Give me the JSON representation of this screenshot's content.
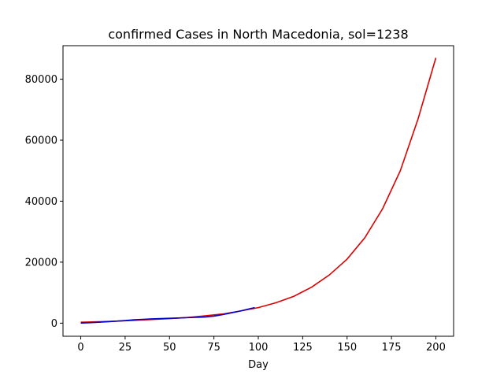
{
  "chart_data": {
    "type": "line",
    "title": "confirmed Cases in North Macedonia, sol=1238",
    "xlabel": "Day",
    "ylabel": "",
    "xlim": [
      -10,
      210
    ],
    "ylim": [
      -4300,
      91000
    ],
    "xticks": [
      0,
      25,
      50,
      75,
      100,
      125,
      150,
      175,
      200
    ],
    "yticks": [
      0,
      20000,
      40000,
      60000,
      80000
    ],
    "grid": false,
    "series": [
      {
        "color": "#dd0000",
        "x": [
          0,
          10,
          20,
          30,
          40,
          50,
          60,
          70,
          80,
          90,
          100,
          110,
          120,
          130,
          140,
          150,
          160,
          170,
          180,
          190,
          200
        ],
        "y": [
          300,
          450,
          650,
          900,
          1200,
          1500,
          1850,
          2400,
          3000,
          4000,
          5100,
          6700,
          8800,
          11800,
          15800,
          21000,
          28000,
          37500,
          50000,
          67000,
          87000
        ]
      },
      {
        "color": "#0000cc",
        "x": [
          0,
          5,
          10,
          15,
          20,
          25,
          30,
          35,
          40,
          45,
          50,
          55,
          60,
          65,
          70,
          75,
          80,
          85,
          90,
          95,
          98
        ],
        "y": [
          50,
          150,
          300,
          450,
          650,
          850,
          1100,
          1250,
          1400,
          1500,
          1600,
          1700,
          1800,
          1900,
          2000,
          2300,
          2800,
          3400,
          4000,
          4700,
          5100
        ]
      }
    ]
  }
}
